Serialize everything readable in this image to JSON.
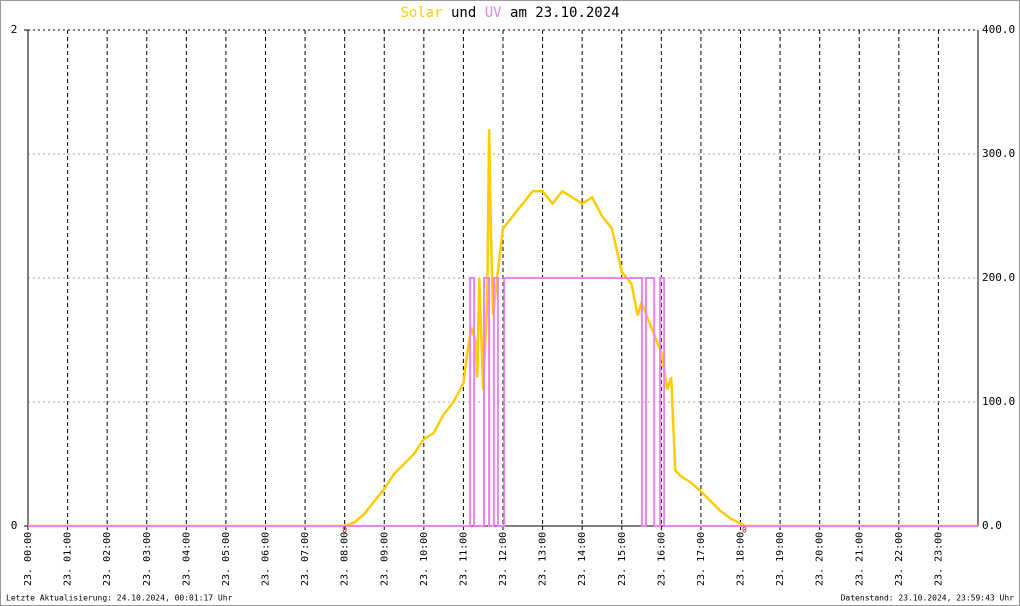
{
  "chart_data": {
    "type": "line",
    "title_parts": [
      "Solar",
      "und",
      "UV",
      "am 23.10.2024"
    ],
    "xlim": [
      0,
      24
    ],
    "xticks": [
      {
        "value": 0,
        "label": "23. 00:00"
      },
      {
        "value": 1,
        "label": "23. 01:00"
      },
      {
        "value": 2,
        "label": "23. 02:00"
      },
      {
        "value": 3,
        "label": "23. 03:00"
      },
      {
        "value": 4,
        "label": "23. 04:00"
      },
      {
        "value": 5,
        "label": "23. 05:00"
      },
      {
        "value": 6,
        "label": "23. 06:00"
      },
      {
        "value": 7,
        "label": "23. 07:00"
      },
      {
        "value": 8,
        "label": "23. 08:00"
      },
      {
        "value": 9,
        "label": "23. 09:00"
      },
      {
        "value": 10,
        "label": "23. 10:00"
      },
      {
        "value": 11,
        "label": "23. 11:00"
      },
      {
        "value": 12,
        "label": "23. 12:00"
      },
      {
        "value": 13,
        "label": "23. 13:00"
      },
      {
        "value": 14,
        "label": "23. 14:00"
      },
      {
        "value": 15,
        "label": "23. 15:00"
      },
      {
        "value": 16,
        "label": "23. 16:00"
      },
      {
        "value": 17,
        "label": "23. 17:00"
      },
      {
        "value": 18,
        "label": "23. 18:00"
      },
      {
        "value": 19,
        "label": "23. 19:00"
      },
      {
        "value": 20,
        "label": "23. 20:00"
      },
      {
        "value": 21,
        "label": "23. 21:00"
      },
      {
        "value": 22,
        "label": "23. 22:00"
      },
      {
        "value": 23,
        "label": "23. 23:00"
      }
    ],
    "ylim": [
      0,
      2
    ],
    "yticks": [
      0,
      2
    ],
    "y2lim": [
      0,
      400
    ],
    "y2ticks": [
      {
        "value": 0,
        "label": "0.0"
      },
      {
        "value": 100,
        "label": "100.0"
      },
      {
        "value": 200,
        "label": "200.0"
      },
      {
        "value": 300,
        "label": "300.0"
      },
      {
        "value": 400,
        "label": "400.0"
      }
    ],
    "grid": true,
    "series": [
      {
        "name": "Solar",
        "color": "#ffcc00",
        "axis": "y2",
        "x": [
          0,
          8.0,
          8.25,
          8.5,
          8.75,
          9.0,
          9.25,
          9.5,
          9.75,
          10.0,
          10.25,
          10.5,
          10.75,
          11.0,
          11.1,
          11.2,
          11.3,
          11.35,
          11.4,
          11.5,
          11.6,
          11.65,
          11.7,
          11.75,
          11.85,
          12.0,
          12.25,
          12.5,
          12.75,
          13.0,
          13.25,
          13.5,
          13.75,
          14.0,
          14.25,
          14.5,
          14.75,
          15.0,
          15.25,
          15.4,
          15.5,
          15.75,
          16.0,
          16.15,
          16.25,
          16.35,
          16.5,
          16.75,
          17.0,
          17.25,
          17.5,
          17.75,
          18.0,
          18.1,
          24
        ],
        "values": [
          0,
          0,
          3,
          10,
          20,
          30,
          42,
          50,
          58,
          70,
          75,
          90,
          100,
          115,
          140,
          160,
          150,
          120,
          200,
          110,
          180,
          320,
          230,
          170,
          200,
          240,
          250,
          260,
          270,
          270,
          260,
          270,
          265,
          260,
          265,
          250,
          240,
          205,
          195,
          170,
          180,
          160,
          140,
          110,
          120,
          45,
          40,
          35,
          28,
          20,
          12,
          6,
          2,
          0,
          0
        ]
      },
      {
        "name": "UV",
        "color": "#ee82ee",
        "axis": "y",
        "x": [
          0,
          11.17,
          11.17,
          11.27,
          11.27,
          11.52,
          11.52,
          11.65,
          11.65,
          11.77,
          11.77,
          11.87,
          11.87,
          12.03,
          12.03,
          15.51,
          15.51,
          15.61,
          15.61,
          15.82,
          15.82,
          15.97,
          15.97,
          16.07,
          16.07,
          24
        ],
        "values": [
          0,
          0,
          1,
          1,
          0,
          0,
          1,
          1,
          0,
          0,
          1,
          1,
          0,
          0,
          1,
          1,
          0,
          0,
          1,
          1,
          0,
          0,
          1,
          1,
          0,
          0
        ]
      }
    ],
    "markers": [
      {
        "x": 8.0,
        "text": "0"
      },
      {
        "x": 18.1,
        "text": "0"
      }
    ],
    "footer_left": "Letzte Aktualisierung: 24.10.2024, 00:01:17 Uhr",
    "footer_right": "Datenstand: 23.10.2024, 23:59:43 Uhr"
  }
}
